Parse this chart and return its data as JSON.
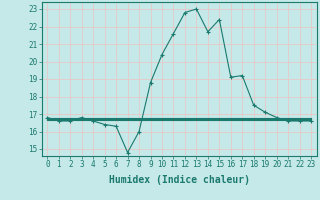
{
  "xlabel": "Humidex (Indice chaleur)",
  "xlim_min": -0.5,
  "xlim_max": 23.5,
  "ylim_min": 14.6,
  "ylim_max": 23.4,
  "yticks": [
    15,
    16,
    17,
    18,
    19,
    20,
    21,
    22,
    23
  ],
  "xticks": [
    0,
    1,
    2,
    3,
    4,
    5,
    6,
    7,
    8,
    9,
    10,
    11,
    12,
    13,
    14,
    15,
    16,
    17,
    18,
    19,
    20,
    21,
    22,
    23
  ],
  "bg_color": "#c5e8e8",
  "grid_color": "#e8c8c8",
  "line_color": "#1a7a6e",
  "x": [
    0,
    1,
    2,
    3,
    4,
    5,
    6,
    7,
    8,
    9,
    10,
    11,
    12,
    13,
    14,
    15,
    16,
    17,
    18,
    19,
    20,
    21,
    22,
    23
  ],
  "y_main": [
    16.8,
    16.6,
    16.6,
    16.8,
    16.6,
    16.4,
    16.3,
    14.8,
    16.0,
    18.8,
    20.4,
    21.6,
    22.8,
    23.0,
    21.7,
    22.4,
    19.1,
    19.2,
    17.5,
    17.1,
    16.8,
    16.6,
    16.6,
    16.6
  ],
  "y_flat1": [
    16.65,
    16.65,
    16.65,
    16.65,
    16.65,
    16.65,
    16.65,
    16.65,
    16.65,
    16.65,
    16.65,
    16.65,
    16.65,
    16.65,
    16.65,
    16.65,
    16.65,
    16.65,
    16.65,
    16.65,
    16.65,
    16.65,
    16.65,
    16.65
  ],
  "y_flat2": [
    16.7,
    16.7,
    16.7,
    16.7,
    16.7,
    16.7,
    16.7,
    16.7,
    16.7,
    16.7,
    16.7,
    16.7,
    16.7,
    16.7,
    16.7,
    16.7,
    16.7,
    16.7,
    16.7,
    16.7,
    16.7,
    16.7,
    16.7,
    16.7
  ],
  "y_flat3": [
    16.75,
    16.75,
    16.75,
    16.75,
    16.75,
    16.75,
    16.75,
    16.75,
    16.75,
    16.75,
    16.75,
    16.75,
    16.75,
    16.75,
    16.75,
    16.75,
    16.75,
    16.75,
    16.75,
    16.75,
    16.75,
    16.75,
    16.75,
    16.75
  ],
  "tick_fontsize": 5.5,
  "label_fontsize": 7.0,
  "line_width": 0.8,
  "marker_size": 3.0
}
